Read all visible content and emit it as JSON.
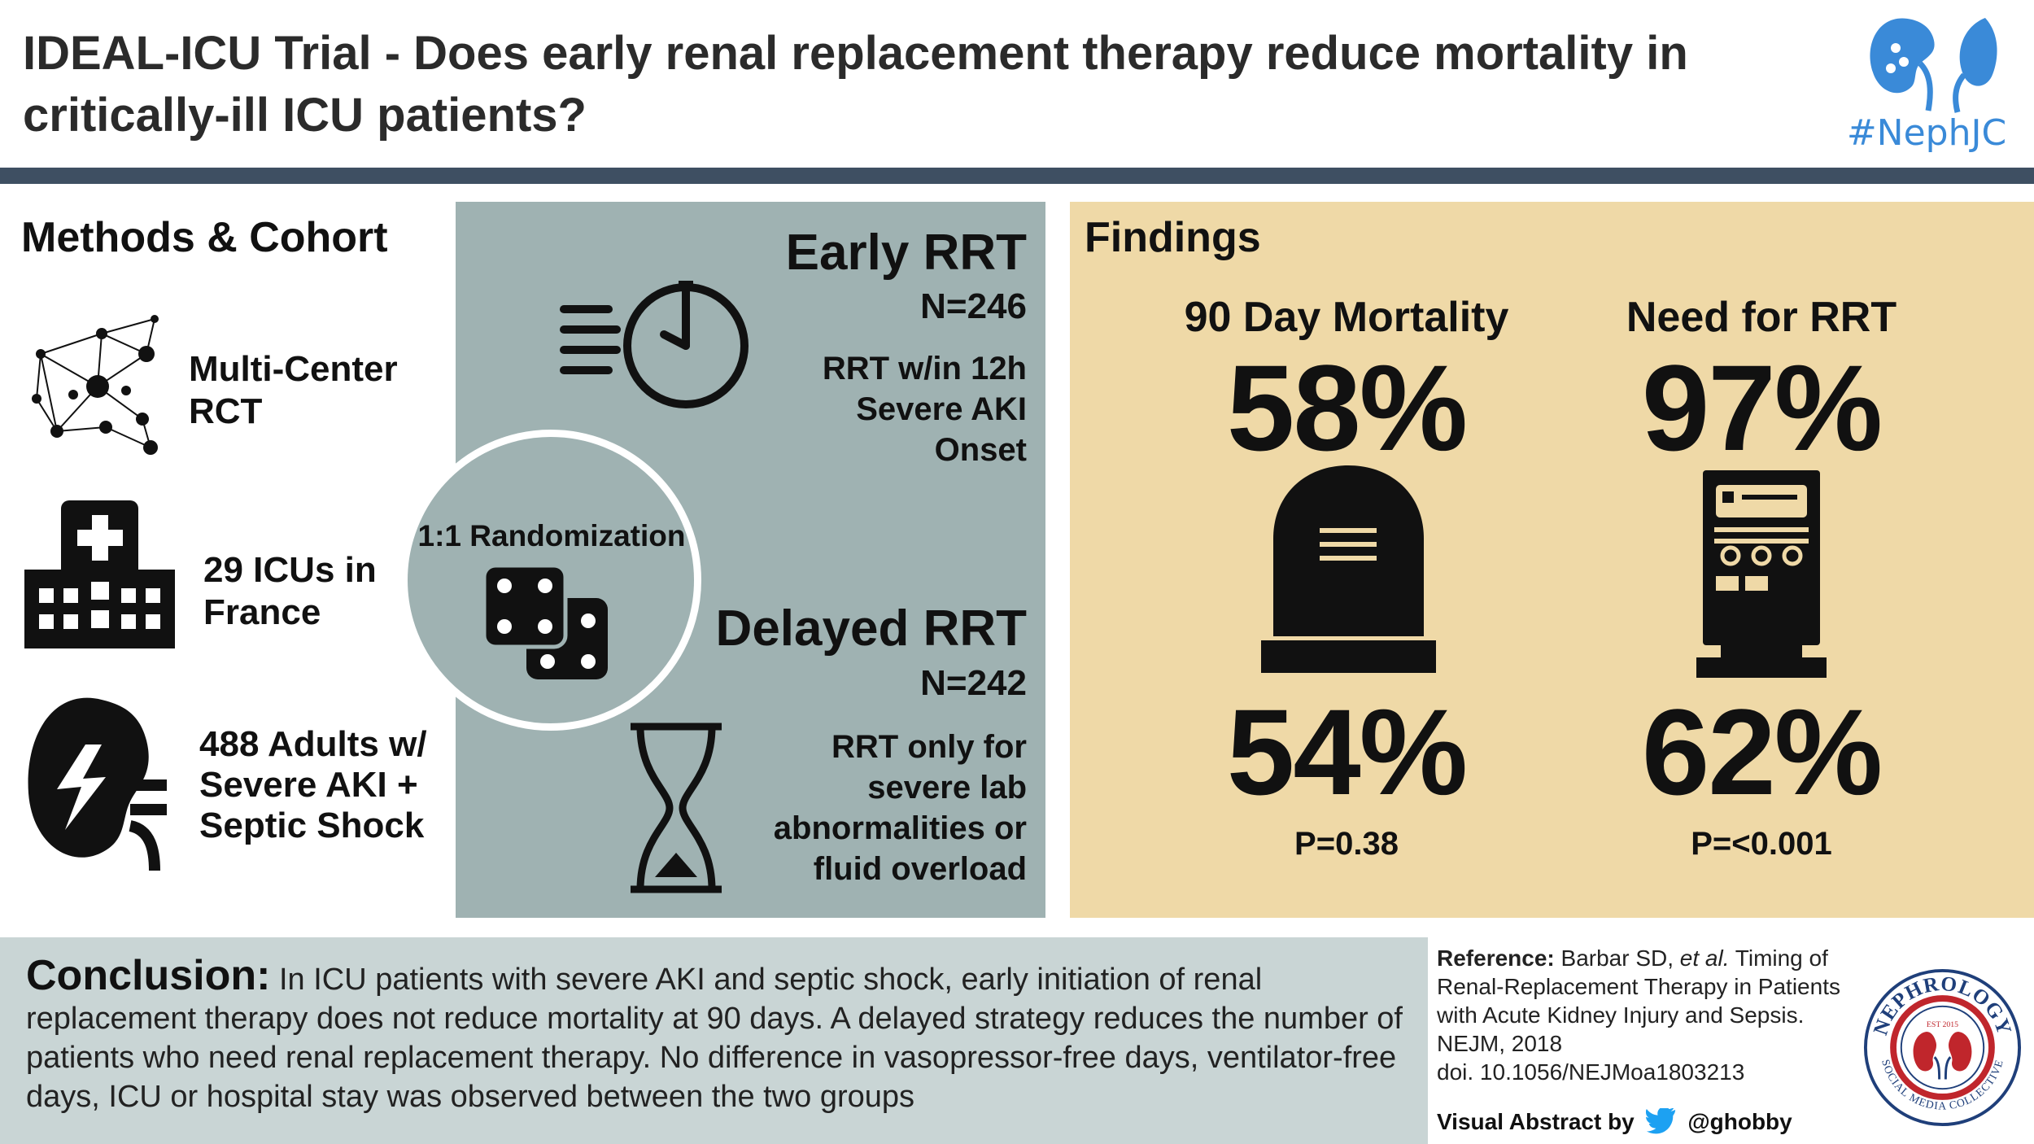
{
  "title": "IDEAL-ICU Trial - Does early renal replacement therapy reduce mortality in critically-ill ICU patients?",
  "logo": {
    "tag": "#NephJC",
    "seal_text": [
      "NEPHROLOGY",
      "SOCIAL MEDIA COLLECTIVE",
      "EST 2015"
    ]
  },
  "methods": {
    "heading": "Methods & Cohort",
    "items": [
      {
        "icon": "network-icon",
        "line1": "Multi-Center",
        "line2": "RCT"
      },
      {
        "icon": "hospital-icon",
        "line1": "29 ICUs in",
        "line2": "France"
      },
      {
        "icon": "kidney-icon",
        "line1": "488 Adults w/",
        "line2": "Severe AKI +",
        "line3": "Septic Shock"
      }
    ]
  },
  "arms": {
    "early": {
      "heading": "Early RRT",
      "n": "N=246",
      "line1": "RRT w/in 12h",
      "line2": "Severe AKI",
      "line3": "Onset",
      "icon": "stopwatch-icon"
    },
    "delayed": {
      "heading": "Delayed RRT",
      "n": "N=242",
      "line1": "RRT only for",
      "line2": "severe lab",
      "line3": "abnormalities or",
      "line4": "fluid overload",
      "icon": "hourglass-icon"
    },
    "randomization": "1:1 Randomization"
  },
  "findings": {
    "heading": "Findings",
    "mortality": {
      "label": "90 Day Mortality",
      "early": "58%",
      "delayed": "54%",
      "p": "P=0.38",
      "icon": "tombstone-icon"
    },
    "need_rrt": {
      "label": "Need for RRT",
      "early": "97%",
      "delayed": "62%",
      "p": "P=<0.001",
      "icon": "dialysis-machine-icon"
    }
  },
  "conclusion": {
    "label": "Conclusion:",
    "text": "In ICU patients with severe AKI and septic shock, early initiation of renal replacement therapy does not reduce mortality at 90 days. A delayed strategy reduces the number of patients who need renal replacement therapy. No difference in vasopressor-free days, ventilator-free days, ICU or hospital stay was observed between the two groups"
  },
  "reference": {
    "label": "Reference:",
    "authors_pre": "Barbar SD,",
    "et_al": "et al.",
    "title": "Timing of Renal-Replacement Therapy in Patients with Acute Kidney Injury and Sepsis.",
    "journal": "NEJM, 2018",
    "doi": "doi. 10.1056/NEJMoa1803213"
  },
  "credit": {
    "label": "Visual Abstract by",
    "handle": "@ghobby"
  },
  "colors": {
    "title_bar": "#3e4f62",
    "mid_panel": "#9fb2b2",
    "findings_panel": "#efd9a7",
    "conclusion_panel": "#c9d5d5",
    "brand_blue": "#3a8ad8",
    "seal_red": "#c0262c",
    "seal_navy": "#1f3f7a"
  }
}
